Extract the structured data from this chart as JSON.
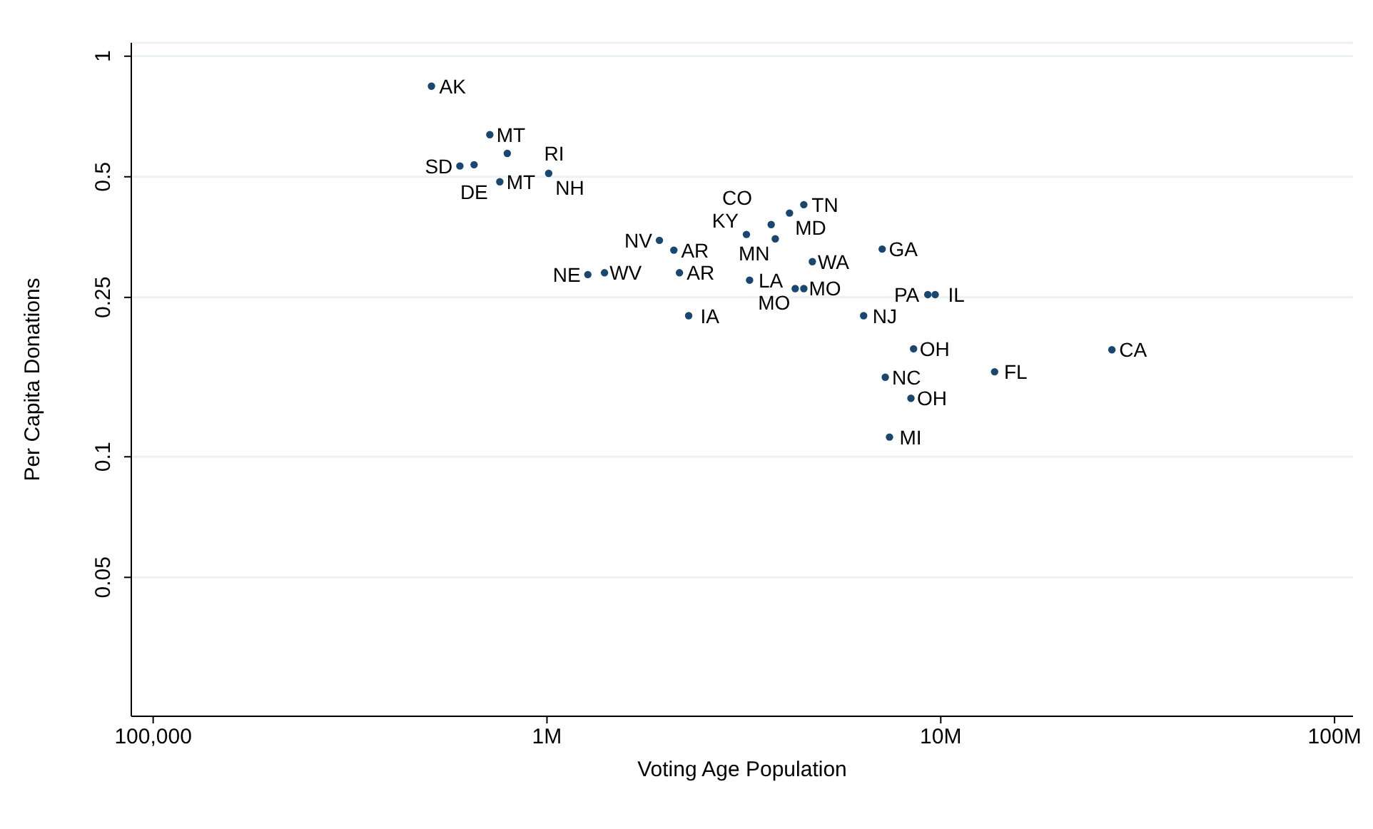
{
  "chart_data": {
    "type": "scatter",
    "xlabel": "Voting Age Population",
    "ylabel": "Per Capita Donations",
    "log": "xy",
    "grid": "y",
    "marker": "circle",
    "legend": false,
    "xlim": [
      88000,
      111400000
    ],
    "xticks": [
      {
        "value": 100000,
        "label": "100,000"
      },
      {
        "value": 1000000,
        "label": "1M"
      },
      {
        "value": 10000000,
        "label": "10M"
      },
      {
        "value": 100000000,
        "label": "100M"
      }
    ],
    "ylim": [
      0.0225,
      1.08
    ],
    "yticks": [
      0.05,
      0.1,
      0.25,
      0.5,
      1
    ],
    "series": [
      {
        "color": "#1a476f",
        "x": [
          509000,
          716000,
          793000,
          601000,
          653000,
          759000,
          1010000,
          1930000,
          2100000,
          2170000,
          1400000,
          1270000,
          2290000,
          3210000,
          3710000,
          4130000,
          4490000,
          3800000,
          4720000,
          7100000,
          3270000,
          4270000,
          4490000,
          9270000,
          9680000,
          6370000,
          8530000,
          7230000,
          8400000,
          7410000,
          13700000,
          27200000
        ],
        "values": [
          0.842,
          0.637,
          0.572,
          0.532,
          0.536,
          0.486,
          0.51,
          0.347,
          0.328,
          0.288,
          0.288,
          0.285,
          0.225,
          0.359,
          0.38,
          0.406,
          0.426,
          0.35,
          0.307,
          0.33,
          0.276,
          0.263,
          0.263,
          0.254,
          0.254,
          0.225,
          0.186,
          0.158,
          0.14,
          0.112,
          0.163,
          0.185
        ]
      }
    ],
    "annotations": [
      {
        "text": "AK",
        "x": 509000,
        "y": 0.842
      },
      {
        "text": "MT",
        "x": 716000,
        "y": 0.637
      },
      {
        "text": "RI",
        "x": 793000,
        "y": 0.572
      },
      {
        "text": "SD",
        "x": 601000,
        "y": 0.532
      },
      {
        "text": "DE",
        "x": 653000,
        "y": 0.536
      },
      {
        "text": "MT",
        "x": 759000,
        "y": 0.486
      },
      {
        "text": "NH",
        "x": 1010000,
        "y": 0.51
      },
      {
        "text": "NV",
        "x": 1930000,
        "y": 0.347
      },
      {
        "text": "AR",
        "x": 2100000,
        "y": 0.328
      },
      {
        "text": "AR",
        "x": 2170000,
        "y": 0.288
      },
      {
        "text": "WV",
        "x": 1400000,
        "y": 0.288
      },
      {
        "text": "NE",
        "x": 1270000,
        "y": 0.285
      },
      {
        "text": "IA",
        "x": 2290000,
        "y": 0.225
      },
      {
        "text": "KY",
        "x": 3210000,
        "y": 0.359
      },
      {
        "text": "CO",
        "x": 3710000,
        "y": 0.38
      },
      {
        "text": "MD",
        "x": 4130000,
        "y": 0.406
      },
      {
        "text": "TN",
        "x": 4490000,
        "y": 0.426
      },
      {
        "text": "MN",
        "x": 3800000,
        "y": 0.35
      },
      {
        "text": "WA",
        "x": 4720000,
        "y": 0.307
      },
      {
        "text": "GA",
        "x": 7100000,
        "y": 0.33
      },
      {
        "text": "LA",
        "x": 3270000,
        "y": 0.276
      },
      {
        "text": "MO",
        "x": 4270000,
        "y": 0.263
      },
      {
        "text": "MO",
        "x": 4490000,
        "y": 0.263
      },
      {
        "text": "PA",
        "x": 9270000,
        "y": 0.254
      },
      {
        "text": "IL",
        "x": 9680000,
        "y": 0.254
      },
      {
        "text": "NJ",
        "x": 6370000,
        "y": 0.225
      },
      {
        "text": "OH",
        "x": 8530000,
        "y": 0.186
      },
      {
        "text": "NC",
        "x": 7230000,
        "y": 0.158
      },
      {
        "text": "OH",
        "x": 8400000,
        "y": 0.14
      },
      {
        "text": "MI",
        "x": 7410000,
        "y": 0.112
      },
      {
        "text": "FL",
        "x": 13700000,
        "y": 0.163
      },
      {
        "text": "CA",
        "x": 27200000,
        "y": 0.185
      }
    ]
  }
}
